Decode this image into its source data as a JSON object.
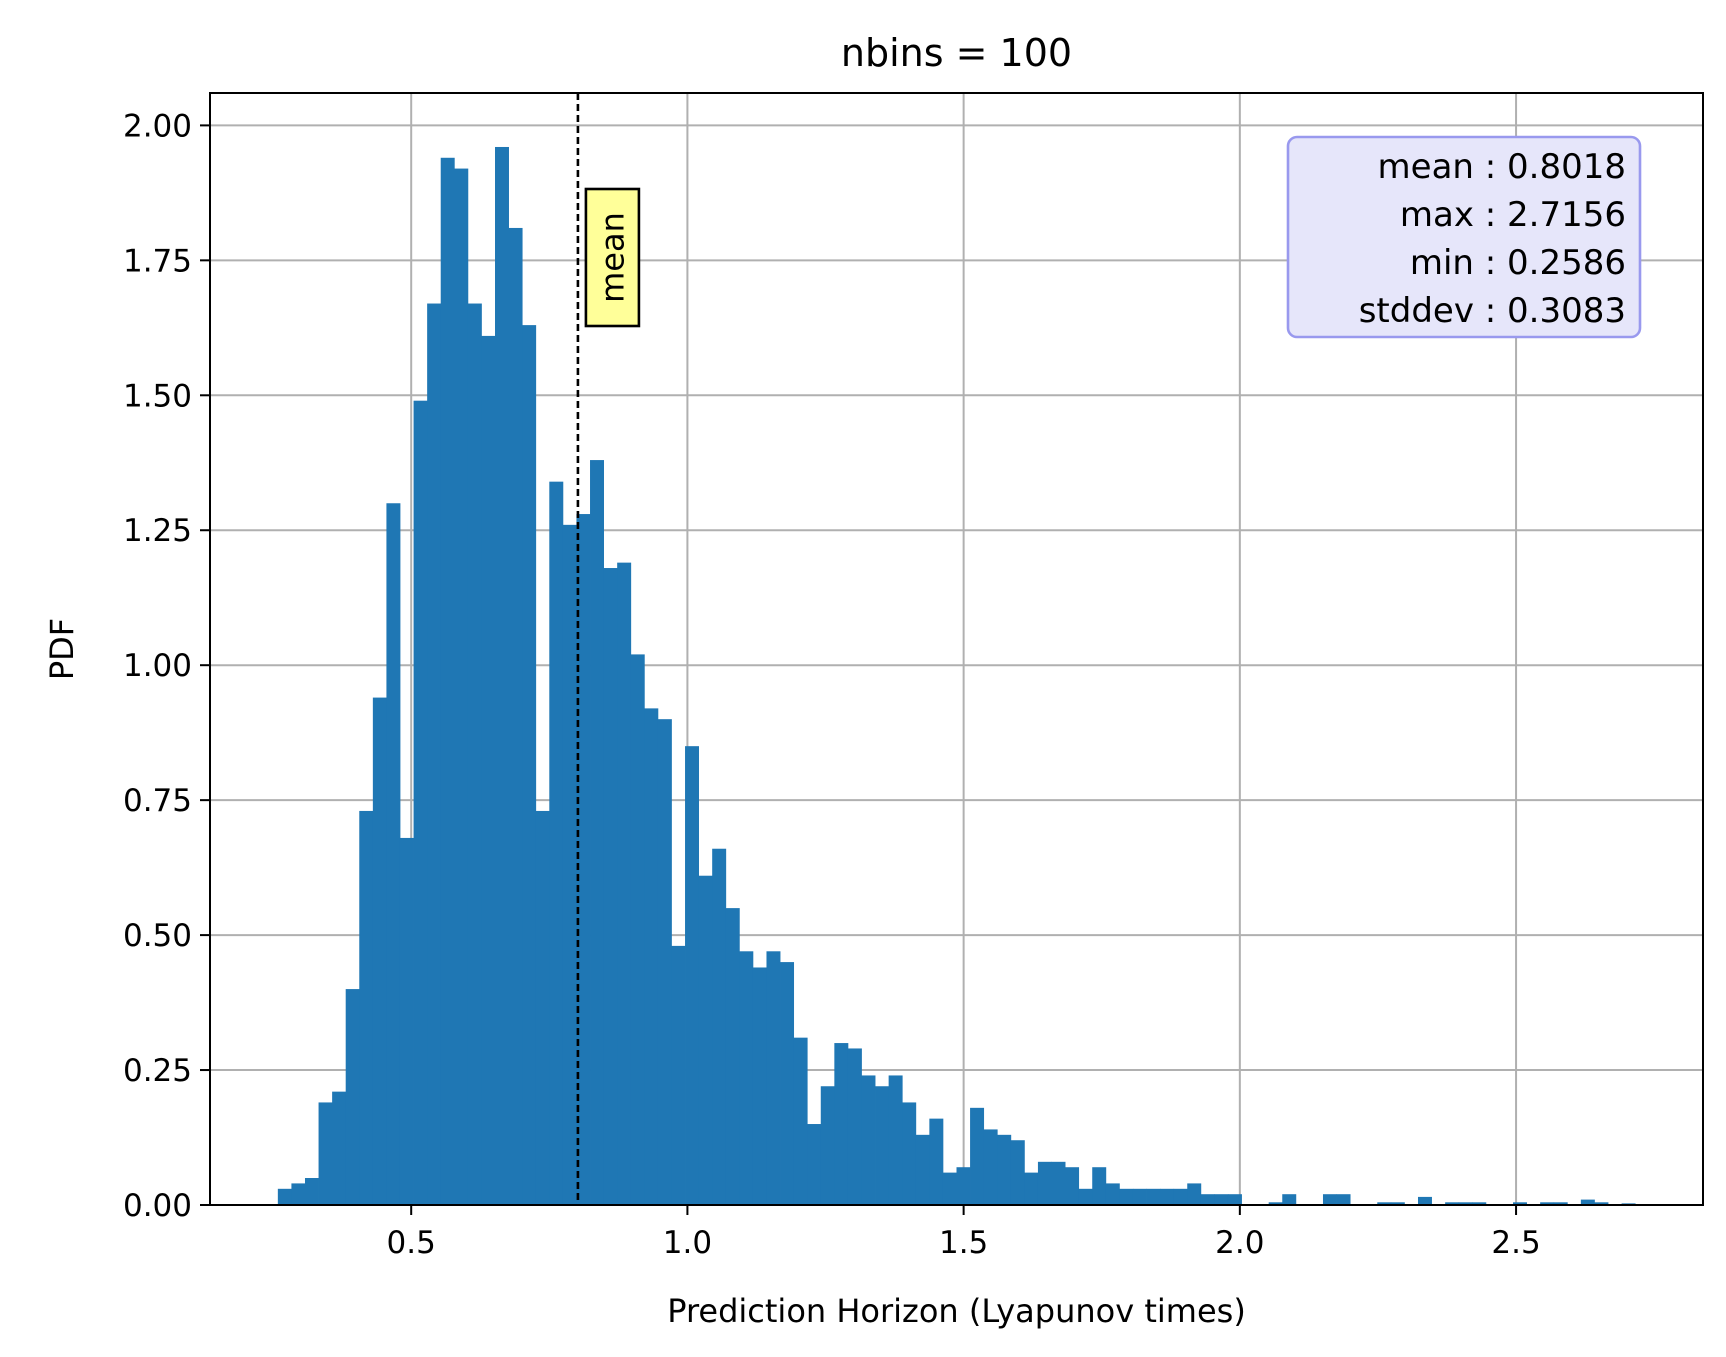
{
  "chart_data": {
    "type": "bar",
    "title": "nbins = 100",
    "xlabel": "Prediction Horizon (Lyapunov times)",
    "ylabel": "PDF",
    "xlim": [
      0.1358,
      2.8384
    ],
    "ylim": [
      0.0,
      2.06
    ],
    "x_ticks": [
      0.5,
      1.0,
      1.5,
      2.0,
      2.5
    ],
    "x_tick_labels": [
      "0.5",
      "1.0",
      "1.5",
      "2.0",
      "2.5"
    ],
    "y_ticks": [
      0.0,
      0.25,
      0.5,
      0.75,
      1.0,
      1.25,
      1.5,
      1.75,
      2.0
    ],
    "y_tick_labels": [
      "0.00",
      "0.25",
      "0.50",
      "0.75",
      "1.00",
      "1.25",
      "1.50",
      "1.75",
      "2.00"
    ],
    "grid": true,
    "bar_color": "#1f77b4",
    "bin_start": 0.2586,
    "bin_end": 2.7156,
    "values": [
      0.03,
      0.04,
      0.05,
      0.19,
      0.21,
      0.4,
      0.73,
      0.94,
      1.3,
      0.68,
      1.49,
      1.67,
      1.94,
      1.92,
      1.67,
      1.61,
      1.96,
      1.81,
      1.63,
      0.73,
      1.34,
      1.26,
      1.28,
      1.38,
      1.18,
      1.19,
      1.02,
      0.92,
      0.9,
      0.48,
      0.85,
      0.61,
      0.66,
      0.55,
      0.47,
      0.44,
      0.47,
      0.45,
      0.31,
      0.15,
      0.22,
      0.3,
      0.29,
      0.24,
      0.22,
      0.24,
      0.19,
      0.13,
      0.16,
      0.06,
      0.07,
      0.18,
      0.14,
      0.13,
      0.12,
      0.06,
      0.08,
      0.08,
      0.07,
      0.03,
      0.07,
      0.04,
      0.03,
      0.03,
      0.03,
      0.03,
      0.03,
      0.04,
      0.02,
      0.02,
      0.02,
      0.0,
      0.0,
      0.005,
      0.02,
      0.0,
      0.0,
      0.02,
      0.02,
      0.0,
      0.0,
      0.005,
      0.005,
      0.0,
      0.015,
      0.0,
      0.005,
      0.005,
      0.005,
      0.0,
      0.0,
      0.005,
      0.0,
      0.005,
      0.005,
      0.0,
      0.01,
      0.005,
      0.0,
      0.003
    ],
    "mean_line": {
      "x": 0.8018,
      "label": "mean",
      "style": "dashed",
      "color": "#000000"
    },
    "stats_box": {
      "lines": [
        "mean : 0.8018",
        "max : 2.7156",
        "min : 0.2586",
        "stddev : 0.3083"
      ],
      "background": "#e6e6fa",
      "border": "#9999ee",
      "placement": "top-right"
    },
    "mean_tag_background": "#ffff99"
  }
}
